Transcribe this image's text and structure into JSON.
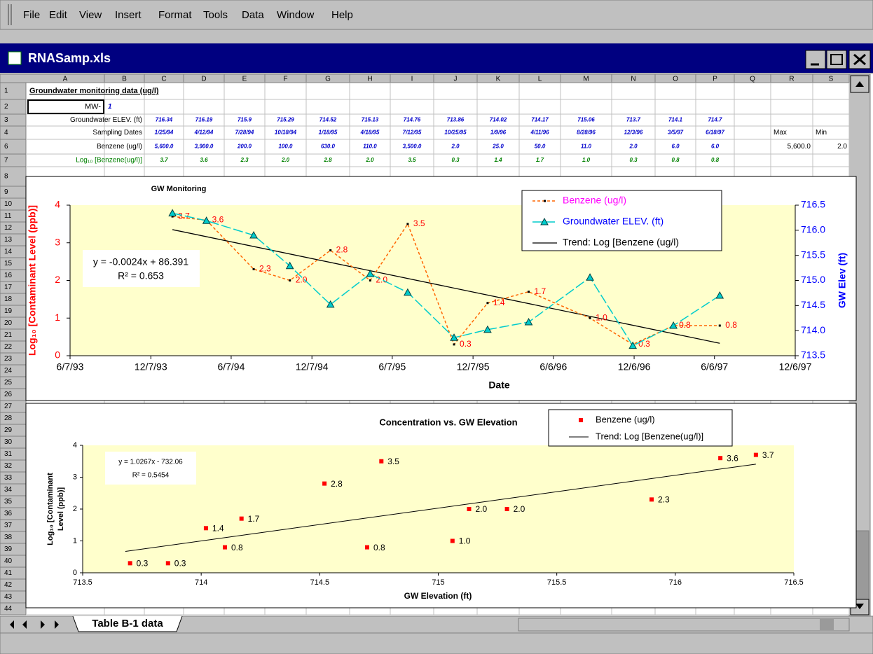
{
  "menu": [
    "File",
    "Edit",
    "View",
    "Insert",
    "Format",
    "Tools",
    "Data",
    "Window",
    "Help"
  ],
  "window_title": "RNASamp.xls",
  "sheet": {
    "columns": [
      "A",
      "B",
      "C",
      "D",
      "E",
      "F",
      "G",
      "H",
      "I",
      "J",
      "K",
      "L",
      "M",
      "N",
      "O",
      "P",
      "Q",
      "R",
      "S"
    ],
    "row_numbers": [
      "1",
      "2",
      "3",
      "4",
      "6",
      "7",
      "8",
      "9",
      "10",
      "11",
      "12",
      "13",
      "14",
      "15",
      "16",
      "17",
      "18",
      "19",
      "20",
      "21",
      "22",
      "23",
      "24",
      "25",
      "26",
      "27",
      "28",
      "29",
      "30",
      "31",
      "32",
      "33",
      "34",
      "35",
      "36",
      "37",
      "38",
      "39",
      "40",
      "41",
      "42",
      "43",
      "44"
    ],
    "title": "Groundwater monitoring data (ug/l)",
    "well_label": "MW-",
    "well_id": "1",
    "rows": [
      {
        "label": "Groundwater ELEV. (ft)",
        "values": [
          "716.34",
          "716.19",
          "715.9",
          "715.29",
          "714.52",
          "715.13",
          "714.76",
          "713.86",
          "714.02",
          "714.17",
          "715.06",
          "713.7",
          "714.1",
          "714.7"
        ]
      },
      {
        "label": "Sampling Dates",
        "values": [
          "1/25/94",
          "4/12/94",
          "7/28/94",
          "10/18/94",
          "1/18/95",
          "4/18/95",
          "7/12/95",
          "10/25/95",
          "1/9/96",
          "4/11/96",
          "8/28/96",
          "12/3/96",
          "3/5/97",
          "6/18/97"
        ],
        "extra": [
          "Max",
          "Min"
        ]
      },
      {
        "label": "Benzene (ug/l)",
        "values": [
          "5,600.0",
          "3,900.0",
          "200.0",
          "100.0",
          "630.0",
          "110.0",
          "3,500.0",
          "2.0",
          "25.0",
          "50.0",
          "11.0",
          "2.0",
          "6.0",
          "6.0"
        ],
        "extra": [
          "5,600.0",
          "2.0"
        ]
      },
      {
        "label": "Log₁₀ [Benzene(ug/l)]",
        "values": [
          "3.7",
          "3.6",
          "2.3",
          "2.0",
          "2.8",
          "2.0",
          "3.5",
          "0.3",
          "1.4",
          "1.7",
          "1.0",
          "0.3",
          "0.8",
          "0.8"
        ]
      }
    ],
    "tab": "Table B-1 data"
  },
  "chart_data": [
    {
      "type": "line",
      "title": "GW Monitoring",
      "xlabel": "Date",
      "ylabel": "Log₁₀ [Contaminant Level (ppb)]",
      "y2label": "GW Elev (ft)",
      "x": [
        "1/25/94",
        "4/12/94",
        "7/28/94",
        "10/18/94",
        "1/18/95",
        "4/18/95",
        "7/12/95",
        "10/25/95",
        "1/9/96",
        "4/11/96",
        "8/28/96",
        "12/3/96",
        "3/5/97",
        "6/18/97"
      ],
      "xlim": [
        "6/7/93",
        "12/6/97"
      ],
      "xticks": [
        "6/7/93",
        "12/7/93",
        "6/7/94",
        "12/7/94",
        "6/7/95",
        "12/7/95",
        "6/6/96",
        "12/6/96",
        "6/6/97",
        "12/6/97"
      ],
      "ylim": [
        0,
        4
      ],
      "yticks": [
        0,
        1,
        2,
        3,
        4
      ],
      "y2lim": [
        713.5,
        716.5
      ],
      "y2ticks": [
        713.5,
        {
          "value": 714,
          "label": "714.0"
        },
        714.5,
        {
          "value": 715,
          "label": "715.0"
        },
        715.5,
        {
          "value": 716,
          "label": "716.0"
        },
        716.5
      ],
      "series": [
        {
          "name": "Benzene (ug/l)",
          "color": "#ff6600",
          "legend_text_color": "#ff00ff",
          "values": [
            3.7,
            3.6,
            2.3,
            2.0,
            2.8,
            2.0,
            3.5,
            0.3,
            1.4,
            1.7,
            1.0,
            0.3,
            0.8,
            0.8
          ],
          "value_labels": [
            "3.7",
            "3.6",
            "2.3",
            "2.0",
            "2.8",
            "2.0",
            "3.5",
            "0.3",
            "1.4",
            "1.7",
            "1.0",
            "0.3",
            "0.8",
            "0.8"
          ]
        },
        {
          "name": "Groundwater ELEV. (ft)",
          "color": "#00cccc",
          "legend_text_color": "#0000ff",
          "axis": "y2",
          "values": [
            716.34,
            716.19,
            715.9,
            715.29,
            714.52,
            715.13,
            714.76,
            713.86,
            714.02,
            714.17,
            715.06,
            713.7,
            714.1,
            714.7
          ]
        }
      ],
      "trendline": {
        "name": "Trend: Log [Benzene (ug/l)",
        "color": "#000000",
        "x": [
          "1/25/94",
          "6/18/97"
        ],
        "values": [
          3.35,
          0.33
        ]
      },
      "annotations": [
        "y = -0.0024x + 86.391",
        "R² = 0.653"
      ]
    },
    {
      "type": "scatter",
      "title": "Concentration vs. GW Elevation",
      "xlabel": "GW Elevation (ft)",
      "ylabel": [
        "Log₁₀ [Contaminant",
        "Level (ppb)]"
      ],
      "xlim": [
        713.5,
        716.5
      ],
      "xticks": [
        713.5,
        714,
        714.5,
        715,
        715.5,
        716,
        716.5
      ],
      "ylim": [
        0,
        4
      ],
      "yticks": [
        0,
        1,
        2,
        3,
        4
      ],
      "series": [
        {
          "name": "Benzene (ug/l)",
          "color": "#ff0000",
          "x": [
            716.34,
            716.19,
            715.9,
            715.29,
            714.52,
            715.13,
            714.76,
            713.86,
            714.02,
            714.17,
            715.06,
            713.7,
            714.1,
            714.7
          ],
          "values": [
            3.7,
            3.6,
            2.3,
            2.0,
            2.8,
            2.0,
            3.5,
            0.3,
            1.4,
            1.7,
            1.0,
            0.3,
            0.8,
            0.8
          ],
          "value_labels": [
            "3.7",
            "3.6",
            "2.3",
            "2.0",
            "2.8",
            "2.0",
            "3.5",
            "0.3",
            "1.4",
            "1.7",
            "1.0",
            "0.3",
            "0.8",
            "0.8"
          ]
        }
      ],
      "trendline": {
        "name": "Trend: Log [Benzene(ug/l)]",
        "color": "#000000",
        "x": [
          713.68,
          716.34
        ],
        "values": [
          0.67,
          3.41
        ]
      },
      "annotations": [
        "y = 1.0267x - 732.06",
        "R² = 0.5454"
      ]
    }
  ]
}
